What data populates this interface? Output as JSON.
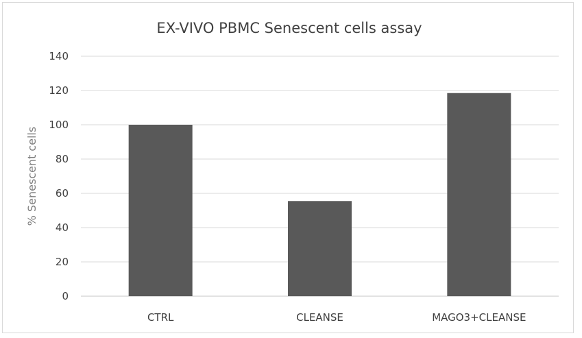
{
  "chart_data": {
    "type": "bar",
    "title": "EX-VIVO PBMC Senescent cells assay",
    "xlabel": "",
    "ylabel": "% Senescent cells",
    "categories": [
      "CTRL",
      "CLEANSE",
      "MAGO3+CLEANSE"
    ],
    "values": [
      100,
      55.5,
      118.5
    ],
    "ylim": [
      0,
      140
    ],
    "yticks": [
      0,
      20,
      40,
      60,
      80,
      100,
      120,
      140
    ],
    "grid": true,
    "legend": "none",
    "colors": {
      "bar": "#595959",
      "grid": "#d9d9d9",
      "text": "#404040",
      "axis_title": "#7f7f7f"
    }
  }
}
